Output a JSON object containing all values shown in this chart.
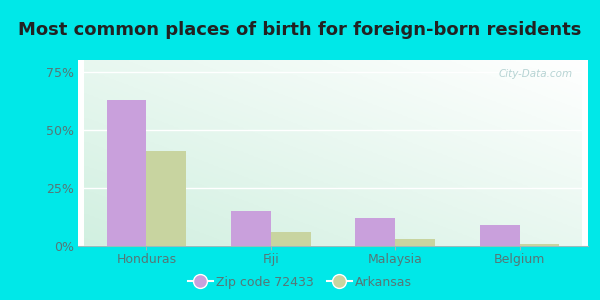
{
  "title": "Most common places of birth for foreign-born residents",
  "categories": [
    "Honduras",
    "Fiji",
    "Malaysia",
    "Belgium"
  ],
  "zip_values": [
    63,
    15,
    12,
    9
  ],
  "state_values": [
    41,
    6,
    3,
    1
  ],
  "zip_color": "#c9a0dc",
  "state_color": "#c8d4a0",
  "zip_label": "Zip code 72433",
  "state_label": "Arkansas",
  "yticks": [
    0,
    25,
    50,
    75
  ],
  "ytick_labels": [
    "0%",
    "25%",
    "50%",
    "75%"
  ],
  "ylim": [
    0,
    80
  ],
  "bg_color_outer": "#00e8e8",
  "title_fontsize": 13,
  "bar_width": 0.32,
  "tick_label_color": "#557777",
  "watermark": "City-Data.com"
}
